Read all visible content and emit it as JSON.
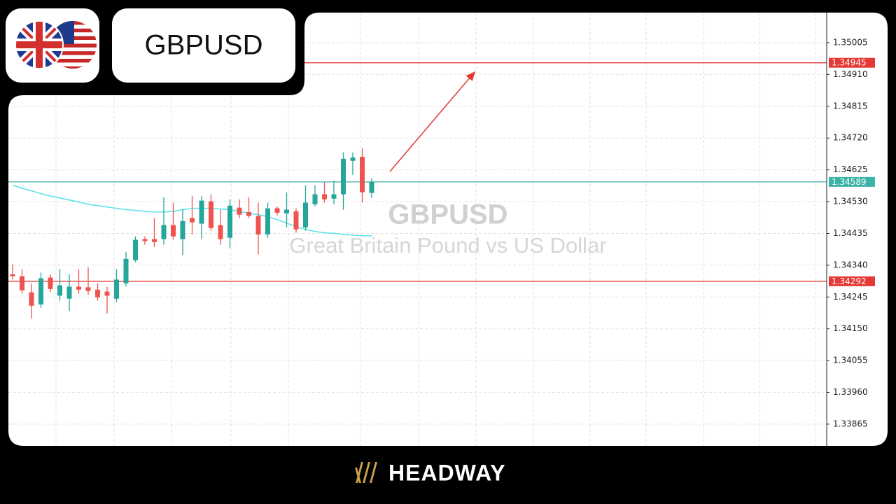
{
  "header": {
    "symbol": "GBPUSD"
  },
  "chart_data": {
    "type": "candlestick",
    "watermark_title": "GBPUSD",
    "watermark_subtitle": "Great Britain Pound vs US Dollar",
    "open": [
      1.34313,
      1.34307,
      1.34259,
      1.34223,
      1.34303,
      1.34249,
      1.3424,
      1.34276,
      1.34274,
      1.34267,
      1.34261,
      1.3424,
      1.34286,
      1.34355,
      1.34418,
      1.34418,
      1.34418,
      1.3446,
      1.34418,
      1.34481,
      1.34464,
      1.34531,
      1.3446,
      1.34422,
      1.34512,
      1.34499,
      1.34487,
      1.34432,
      1.3451,
      1.34495,
      1.34501,
      1.34453,
      1.34522,
      1.34552,
      1.34539,
      1.34552,
      1.34652,
      1.34664,
      1.34556
    ],
    "high": [
      1.34343,
      1.34328,
      1.34286,
      1.34318,
      1.34313,
      1.34328,
      1.34313,
      1.34328,
      1.34334,
      1.34286,
      1.34276,
      1.34328,
      1.3438,
      1.34426,
      1.34426,
      1.34481,
      1.34543,
      1.34527,
      1.34506,
      1.34547,
      1.34547,
      1.34552,
      1.34506,
      1.34537,
      1.34537,
      1.34543,
      1.34527,
      1.34527,
      1.34516,
      1.34558,
      1.3451,
      1.34579,
      1.34579,
      1.34589,
      1.34593,
      1.34677,
      1.34677,
      1.3469,
      1.346
    ],
    "low": [
      1.34297,
      1.34255,
      1.3418,
      1.34213,
      1.34259,
      1.34234,
      1.34203,
      1.34255,
      1.34251,
      1.34234,
      1.34196,
      1.3423,
      1.34276,
      1.34349,
      1.34401,
      1.34395,
      1.34401,
      1.34416,
      1.3437,
      1.34432,
      1.34418,
      1.34443,
      1.34401,
      1.34391,
      1.34481,
      1.34481,
      1.34372,
      1.34422,
      1.34489,
      1.34453,
      1.34437,
      1.34443,
      1.34516,
      1.34527,
      1.34522,
      1.34506,
      1.3461,
      1.34527,
      1.34541
    ],
    "close": [
      1.34307,
      1.34265,
      1.34219,
      1.34301,
      1.34269,
      1.3428,
      1.34276,
      1.34267,
      1.34263,
      1.34244,
      1.34249,
      1.34297,
      1.34359,
      1.34416,
      1.34412,
      1.34409,
      1.3446,
      1.34426,
      1.34472,
      1.34468,
      1.34533,
      1.34451,
      1.34418,
      1.34518,
      1.34491,
      1.34487,
      1.34432,
      1.3451,
      1.34497,
      1.34506,
      1.34447,
      1.34527,
      1.34552,
      1.34537,
      1.34552,
      1.34658,
      1.34662,
      1.34558,
      1.34589
    ],
    "up_color": "#26a69a",
    "down_color": "#ef5350",
    "series": [
      {
        "type": "line",
        "color": "#5fe3e8",
        "values": [
          1.34579,
          1.3457,
          1.34562,
          1.34554,
          1.34547,
          1.34541,
          1.34535,
          1.34529,
          1.34522,
          1.34518,
          1.34514,
          1.3451,
          1.34506,
          1.34504,
          1.34501,
          1.34499,
          1.34499,
          1.34501,
          1.34506,
          1.3451,
          1.3451,
          1.3451,
          1.34508,
          1.34506,
          1.34501,
          1.34495,
          1.34491,
          1.34485,
          1.34476,
          1.34466,
          1.34455,
          1.34447,
          1.34441,
          1.34437,
          1.34435,
          1.34432,
          1.3443,
          1.34428,
          1.34428
        ]
      }
    ],
    "levels": [
      {
        "value": 1.34945,
        "color": "#e53935"
      },
      {
        "value": 1.34589,
        "color": "#3bb3a6"
      },
      {
        "value": 1.34292,
        "color": "#e53935"
      }
    ],
    "ylim": [
      1.338,
      1.35095
    ],
    "yticks": [
      1.35005,
      {
        "value": 1.3491,
        "label": "1.34910"
      },
      1.34815,
      {
        "value": 1.3472,
        "label": "1.34720"
      },
      1.34625,
      {
        "value": 1.3453,
        "label": "1.34530"
      },
      1.34435,
      {
        "value": 1.3434,
        "label": "1.34340"
      },
      1.34245,
      {
        "value": 1.3415,
        "label": "1.34150"
      },
      1.34055,
      {
        "value": 1.3396,
        "label": "1.33960"
      },
      1.33865
    ],
    "grid": true
  },
  "footer": {
    "brand": "HEADWAY"
  }
}
